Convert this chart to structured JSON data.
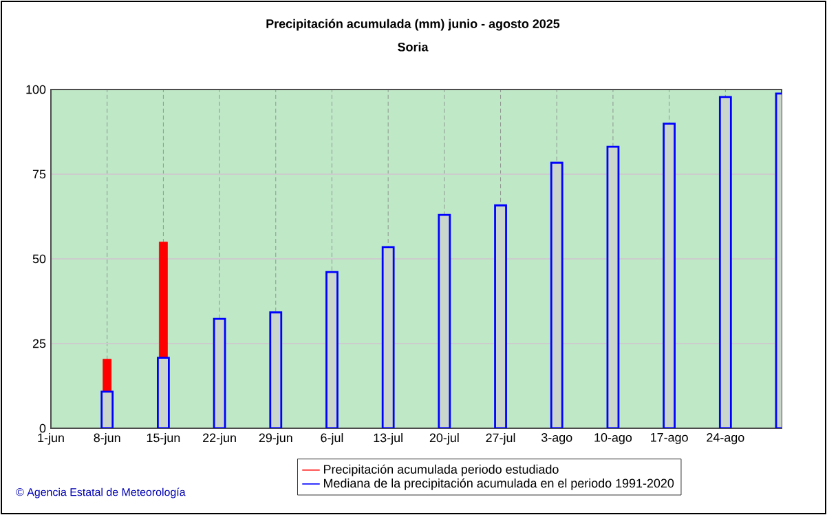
{
  "chart_data": {
    "type": "bar",
    "title": "Precipitación acumulada (mm) junio - agosto 2025",
    "subtitle": "Soria",
    "categories": [
      "1-jun",
      "8-jun",
      "15-jun",
      "22-jun",
      "29-jun",
      "6-jul",
      "13-jul",
      "20-jul",
      "27-jul",
      "3-ago",
      "10-ago",
      "17-ago",
      "24-ago",
      null
    ],
    "series": [
      {
        "name": "Precipitación acumulada periodo estudiado",
        "color": "#ff0000",
        "values": [
          null,
          20.4,
          55,
          null,
          null,
          null,
          null,
          null,
          null,
          null,
          null,
          null,
          null,
          null
        ]
      },
      {
        "name": "Mediana de la precipitación acumulada en el periodo 1991-2020",
        "color": "#0000ff",
        "values": [
          null,
          10.8,
          20.8,
          32.3,
          34.2,
          46.1,
          53.5,
          63.0,
          65.8,
          78.4,
          83.1,
          89.9,
          97.8,
          98.8
        ]
      }
    ],
    "ylim": [
      0,
      100
    ],
    "yticks": [
      0,
      25,
      50,
      75,
      100
    ],
    "grid": true,
    "legend": "bottom",
    "annotations": [
      "© Agencia Estatal de Meteorología"
    ]
  }
}
